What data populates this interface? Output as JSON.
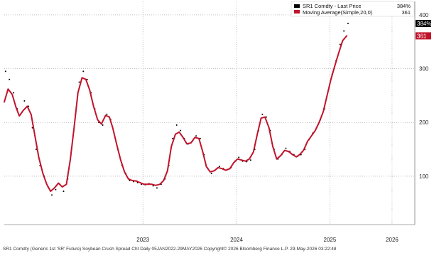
{
  "chart_data": {
    "type": "line",
    "title": "",
    "xlabel": "",
    "ylabel": "",
    "x_ticks": [
      {
        "label": "2023",
        "x": "2023-07-01"
      },
      {
        "label": "2024",
        "x": "2024-07-01"
      },
      {
        "label": "2025",
        "x": "2025-07-01"
      },
      {
        "label": "2026",
        "x": "2026-03-01"
      }
    ],
    "x_range": [
      "2022-01-05",
      "2026-05-29"
    ],
    "y_ticks": [
      100,
      200,
      300,
      400
    ],
    "ylim": [
      10,
      425
    ],
    "grid": true,
    "y_axis_side": "right",
    "legend_placement": "top-right",
    "legend": [
      {
        "label": "SR1 Comdty - Last Price",
        "value": "384%"
      },
      {
        "label": "Moving Average(Simple,20,0)",
        "value": "361"
      }
    ],
    "last_value_tags": [
      {
        "text": "384%",
        "value": 384,
        "color": "#000000"
      },
      {
        "text": "361",
        "value": 361,
        "color": "#c0142b"
      }
    ],
    "series": [
      {
        "name": "SR1 Comdty - Last Price",
        "style": "dots",
        "color": "#000000",
        "points": [
          [
            "2022-01-10",
            295
          ],
          [
            "2022-01-25",
            280
          ],
          [
            "2022-02-10",
            255
          ],
          [
            "2022-02-25",
            225
          ],
          [
            "2022-03-10",
            215
          ],
          [
            "2022-03-25",
            240
          ],
          [
            "2022-04-10",
            230
          ],
          [
            "2022-04-25",
            190
          ],
          [
            "2022-05-10",
            150
          ],
          [
            "2022-05-25",
            120
          ],
          [
            "2022-06-10",
            100
          ],
          [
            "2022-06-25",
            80
          ],
          [
            "2022-07-10",
            65
          ],
          [
            "2022-07-25",
            75
          ],
          [
            "2022-08-10",
            85
          ],
          [
            "2022-08-25",
            72
          ],
          [
            "2022-09-10",
            95
          ],
          [
            "2022-09-25",
            150
          ],
          [
            "2022-10-10",
            215
          ],
          [
            "2022-10-25",
            275
          ],
          [
            "2022-11-10",
            295
          ],
          [
            "2022-11-25",
            280
          ],
          [
            "2022-12-10",
            255
          ],
          [
            "2022-12-25",
            225
          ],
          [
            "2023-01-10",
            200
          ],
          [
            "2023-01-25",
            195
          ],
          [
            "2023-02-10",
            215
          ],
          [
            "2023-02-25",
            205
          ],
          [
            "2023-03-10",
            180
          ],
          [
            "2023-03-25",
            150
          ],
          [
            "2023-04-10",
            120
          ],
          [
            "2023-04-25",
            105
          ],
          [
            "2023-05-10",
            92
          ],
          [
            "2023-05-25",
            90
          ],
          [
            "2023-06-10",
            88
          ],
          [
            "2023-06-25",
            85
          ],
          [
            "2023-07-10",
            84
          ],
          [
            "2023-07-25",
            86
          ],
          [
            "2023-08-10",
            82
          ],
          [
            "2023-08-25",
            78
          ],
          [
            "2023-09-10",
            85
          ],
          [
            "2023-09-25",
            95
          ],
          [
            "2023-10-10",
            120
          ],
          [
            "2023-10-25",
            170
          ],
          [
            "2023-11-10",
            195
          ],
          [
            "2023-11-25",
            185
          ],
          [
            "2023-12-10",
            170
          ],
          [
            "2023-12-25",
            160
          ],
          [
            "2024-01-10",
            165
          ],
          [
            "2024-01-25",
            175
          ],
          [
            "2024-02-10",
            170
          ],
          [
            "2024-02-25",
            140
          ],
          [
            "2024-03-10",
            115
          ],
          [
            "2024-03-25",
            105
          ],
          [
            "2024-04-10",
            112
          ],
          [
            "2024-04-25",
            118
          ],
          [
            "2024-05-10",
            114
          ],
          [
            "2024-05-25",
            112
          ],
          [
            "2024-06-10",
            116
          ],
          [
            "2024-06-25",
            128
          ],
          [
            "2024-07-10",
            135
          ],
          [
            "2024-07-25",
            128
          ],
          [
            "2024-08-10",
            127
          ],
          [
            "2024-08-25",
            130
          ],
          [
            "2024-09-10",
            150
          ],
          [
            "2024-09-25",
            185
          ],
          [
            "2024-10-10",
            215
          ],
          [
            "2024-10-25",
            210
          ],
          [
            "2024-11-10",
            185
          ],
          [
            "2024-11-25",
            150
          ],
          [
            "2024-12-10",
            132
          ],
          [
            "2024-12-25",
            140
          ],
          [
            "2025-01-10",
            152
          ],
          [
            "2025-01-25",
            146
          ],
          [
            "2025-02-10",
            140
          ],
          [
            "2025-02-25",
            137
          ],
          [
            "2025-03-10",
            140
          ],
          [
            "2025-03-25",
            150
          ],
          [
            "2025-04-10",
            168
          ],
          [
            "2025-04-25",
            180
          ],
          [
            "2025-05-10",
            190
          ],
          [
            "2025-05-25",
            205
          ],
          [
            "2025-06-10",
            225
          ],
          [
            "2025-06-25",
            260
          ],
          [
            "2025-07-10",
            290
          ],
          [
            "2025-07-25",
            315
          ],
          [
            "2025-08-10",
            345
          ],
          [
            "2025-08-25",
            370
          ],
          [
            "2025-09-10",
            384
          ]
        ]
      },
      {
        "name": "Moving Average(Simple,20,0)",
        "style": "line",
        "color": "#c0142b",
        "points": [
          [
            "2022-01-05",
            238
          ],
          [
            "2022-01-20",
            262
          ],
          [
            "2022-02-05",
            252
          ],
          [
            "2022-02-20",
            228
          ],
          [
            "2022-03-05",
            212
          ],
          [
            "2022-03-20",
            222
          ],
          [
            "2022-04-05",
            230
          ],
          [
            "2022-04-20",
            215
          ],
          [
            "2022-05-05",
            175
          ],
          [
            "2022-05-20",
            135
          ],
          [
            "2022-06-05",
            105
          ],
          [
            "2022-06-20",
            85
          ],
          [
            "2022-07-05",
            72
          ],
          [
            "2022-07-20",
            78
          ],
          [
            "2022-08-05",
            87
          ],
          [
            "2022-08-20",
            80
          ],
          [
            "2022-09-05",
            85
          ],
          [
            "2022-09-20",
            130
          ],
          [
            "2022-10-05",
            190
          ],
          [
            "2022-10-20",
            255
          ],
          [
            "2022-11-05",
            283
          ],
          [
            "2022-11-20",
            280
          ],
          [
            "2022-12-05",
            260
          ],
          [
            "2022-12-20",
            230
          ],
          [
            "2023-01-05",
            205
          ],
          [
            "2023-01-20",
            197
          ],
          [
            "2023-02-05",
            213
          ],
          [
            "2023-02-20",
            210
          ],
          [
            "2023-03-05",
            190
          ],
          [
            "2023-03-20",
            160
          ],
          [
            "2023-04-05",
            130
          ],
          [
            "2023-04-20",
            108
          ],
          [
            "2023-05-05",
            95
          ],
          [
            "2023-05-20",
            92
          ],
          [
            "2023-06-05",
            91
          ],
          [
            "2023-06-20",
            88
          ],
          [
            "2023-07-05",
            85
          ],
          [
            "2023-07-20",
            85
          ],
          [
            "2023-08-05",
            85
          ],
          [
            "2023-08-20",
            83
          ],
          [
            "2023-09-05",
            85
          ],
          [
            "2023-09-20",
            92
          ],
          [
            "2023-10-05",
            110
          ],
          [
            "2023-10-20",
            155
          ],
          [
            "2023-11-05",
            178
          ],
          [
            "2023-11-20",
            182
          ],
          [
            "2023-12-05",
            172
          ],
          [
            "2023-12-20",
            160
          ],
          [
            "2024-01-05",
            162
          ],
          [
            "2024-01-20",
            172
          ],
          [
            "2024-02-05",
            170
          ],
          [
            "2024-02-20",
            145
          ],
          [
            "2024-03-05",
            118
          ],
          [
            "2024-03-20",
            108
          ],
          [
            "2024-04-05",
            110
          ],
          [
            "2024-04-20",
            116
          ],
          [
            "2024-05-05",
            114
          ],
          [
            "2024-05-20",
            111
          ],
          [
            "2024-06-05",
            114
          ],
          [
            "2024-06-20",
            125
          ],
          [
            "2024-07-05",
            132
          ],
          [
            "2024-07-20",
            130
          ],
          [
            "2024-08-05",
            128
          ],
          [
            "2024-08-20",
            132
          ],
          [
            "2024-09-05",
            145
          ],
          [
            "2024-09-20",
            178
          ],
          [
            "2024-10-05",
            208
          ],
          [
            "2024-10-20",
            210
          ],
          [
            "2024-11-05",
            190
          ],
          [
            "2024-11-20",
            155
          ],
          [
            "2024-12-05",
            132
          ],
          [
            "2024-12-20",
            138
          ],
          [
            "2025-01-05",
            148
          ],
          [
            "2025-01-20",
            146
          ],
          [
            "2025-02-05",
            140
          ],
          [
            "2025-02-20",
            136
          ],
          [
            "2025-03-05",
            140
          ],
          [
            "2025-03-20",
            148
          ],
          [
            "2025-04-05",
            165
          ],
          [
            "2025-04-20",
            175
          ],
          [
            "2025-05-05",
            185
          ],
          [
            "2025-05-20",
            200
          ],
          [
            "2025-06-05",
            220
          ],
          [
            "2025-06-20",
            250
          ],
          [
            "2025-07-05",
            280
          ],
          [
            "2025-07-20",
            305
          ],
          [
            "2025-08-05",
            330
          ],
          [
            "2025-08-20",
            352
          ],
          [
            "2025-09-05",
            361
          ]
        ]
      }
    ]
  },
  "footer_text": "SR1 Comdty (Generic 1st 'SR' Future)  Soybean Crush Spread Cht Daily 05JAN2022-29MAY2026 Copyright© 2026 Bloomberg Finance L.P.  29-May-2026 03:22:48"
}
